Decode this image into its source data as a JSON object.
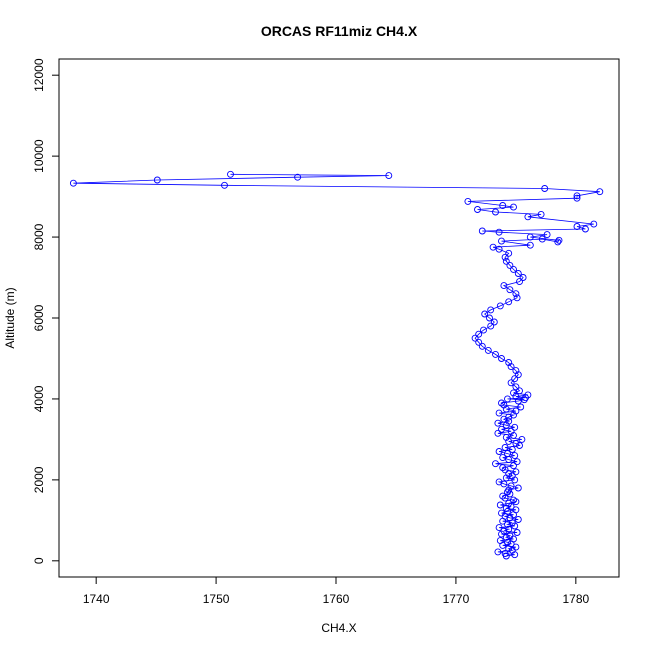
{
  "chart_data": {
    "type": "line",
    "title": "ORCAS RF11miz CH4.X",
    "xlabel": "CH4.X",
    "ylabel": "Altitude (m)",
    "xlim": [
      1736.9,
      1783.6
    ],
    "ylim": [
      -400,
      12400
    ],
    "xticks": [
      1740,
      1750,
      1760,
      1770,
      1780
    ],
    "yticks": [
      0,
      2000,
      4000,
      6000,
      8000,
      10000,
      12000
    ],
    "grid": false,
    "series_color": "#0000ff",
    "marker": "open-circle",
    "series": [
      {
        "x": [
          1774.2,
          1774.9,
          1774.1,
          1773.5,
          1774.7,
          1774.4,
          1775.0,
          1773.9,
          1774.6,
          1774.3,
          1773.7,
          1774.8,
          1774.2,
          1774.5,
          1773.8,
          1775.1,
          1774.0,
          1774.4,
          1773.6,
          1774.9,
          1774.3,
          1774.7,
          1773.9,
          1775.2,
          1774.5,
          1774.1,
          1774.8,
          1773.8,
          1774.3,
          1775.0,
          1774.2,
          1774.6,
          1773.7,
          1774.4,
          1775.0,
          1774.8,
          1774.1,
          1773.9,
          1774.5,
          1774.3,
          1774.4,
          1775.2,
          1774.6,
          1774.0,
          1773.6,
          1774.9,
          1774.2,
          1774.7,
          1774.4,
          1775.0,
          1774.1,
          1773.9,
          1774.8,
          1773.3,
          1775.1,
          1774.4,
          1773.9,
          1774.9,
          1774.3,
          1773.6,
          1774.7,
          1774.1,
          1775.3,
          1775.0,
          1774.4,
          1775.5,
          1774.2,
          1774.8,
          1773.5,
          1774.6,
          1773.8,
          1774.9,
          1774.2,
          1773.5,
          1774.4,
          1774.0,
          1774.4,
          1774.8,
          1773.6,
          1775.0,
          1774.2,
          1775.4,
          1774.0,
          1773.8,
          1775.2,
          1775.7,
          1774.3,
          1775.8,
          1775.0,
          1776.0,
          1774.8,
          1775.3,
          1775.0,
          1774.6,
          1774.9,
          1775.2,
          1775.0,
          1774.6,
          1774.4,
          1773.8,
          1773.3,
          1772.7,
          1772.2,
          1771.9,
          1771.6,
          1771.9,
          1772.3,
          1772.9,
          1773.2,
          1772.8,
          1772.4,
          1772.9,
          1773.7,
          1774.4,
          1775.1,
          1775.0,
          1774.5,
          1774.0,
          1775.3,
          1775.6,
          1775.2,
          1774.8,
          1774.5,
          1774.2,
          1774.1,
          1774.4,
          1773.6,
          1773.1,
          1776.2,
          1773.8,
          1777.2,
          1778.5,
          1778.6,
          1776.2,
          1777.6,
          1773.6,
          1772.2,
          1780.8,
          1780.1,
          1781.5,
          1776.0,
          1777.1,
          1773.3,
          1771.8,
          1774.8,
          1773.9,
          1771.0,
          1780.1,
          1780.1,
          1782.0,
          1777.4,
          1750.7,
          1738.1,
          1745.1,
          1756.8,
          1764.4,
          1751.2
        ],
        "y": [
          120,
          150,
          180,
          220,
          260,
          300,
          340,
          380,
          420,
          460,
          500,
          540,
          580,
          620,
          660,
          700,
          740,
          780,
          820,
          860,
          900,
          940,
          980,
          1020,
          1060,
          1100,
          1140,
          1180,
          1220,
          1260,
          1300,
          1340,
          1380,
          1420,
          1460,
          1500,
          1550,
          1600,
          1650,
          1700,
          1750,
          1800,
          1850,
          1900,
          1950,
          2000,
          2050,
          2100,
          2150,
          2200,
          2250,
          2300,
          2350,
          2400,
          2450,
          2500,
          2550,
          2600,
          2650,
          2700,
          2750,
          2800,
          2850,
          2900,
          2950,
          3000,
          3050,
          3100,
          3150,
          3200,
          3250,
          3300,
          3350,
          3400,
          3450,
          3500,
          3550,
          3600,
          3650,
          3700,
          3750,
          3800,
          3850,
          3900,
          3950,
          3980,
          4000,
          4030,
          4060,
          4100,
          4150,
          4200,
          4300,
          4400,
          4500,
          4600,
          4700,
          4800,
          4900,
          5000,
          5100,
          5200,
          5300,
          5400,
          5500,
          5600,
          5700,
          5800,
          5900,
          6000,
          6100,
          6200,
          6300,
          6400,
          6500,
          6600,
          6700,
          6800,
          6900,
          7000,
          7100,
          7200,
          7300,
          7400,
          7500,
          7600,
          7700,
          7750,
          7800,
          7900,
          7950,
          7880,
          7920,
          8000,
          8060,
          8120,
          8150,
          8200,
          8260,
          8320,
          8500,
          8560,
          8620,
          8680,
          8740,
          8780,
          8880,
          8960,
          9020,
          9120,
          9200,
          9280,
          9330,
          9410,
          9480,
          9520,
          9550
        ]
      }
    ]
  }
}
